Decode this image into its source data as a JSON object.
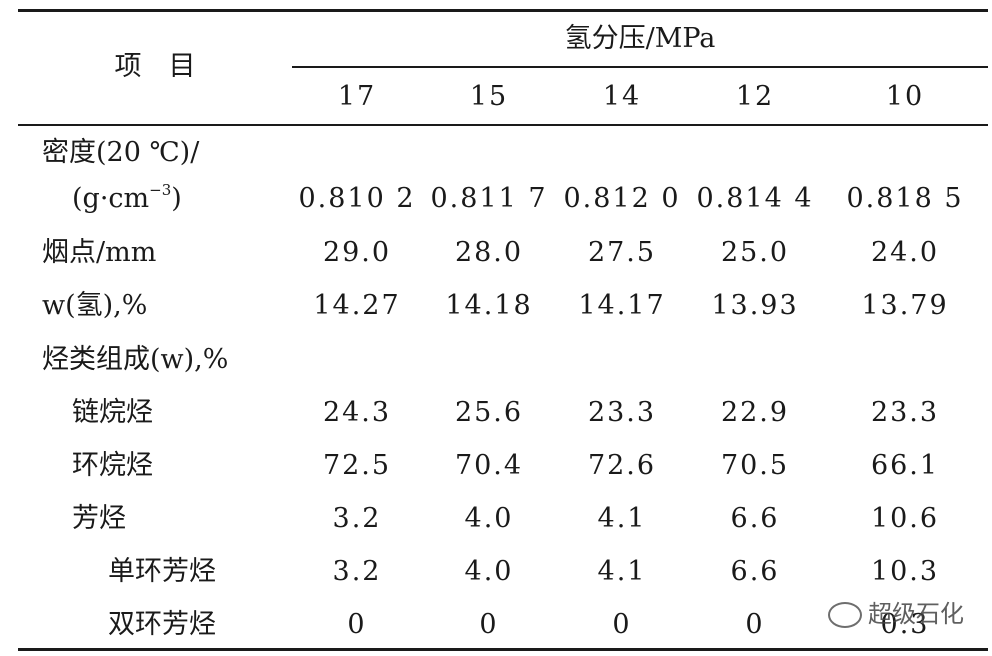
{
  "table": {
    "header": {
      "item_label": "项　目",
      "group_label": "氢分压/MPa",
      "pressures": [
        "17",
        "15",
        "14",
        "12",
        "10"
      ]
    },
    "rows": [
      {
        "label": "密度(20 ℃)/",
        "values": [
          "",
          "",
          "",
          "",
          ""
        ]
      },
      {
        "label": "(g·cm",
        "label_sup": "−3",
        "label_tail": ")",
        "values": [
          "0.810 2",
          "0.811 7",
          "0.812 0",
          "0.814 4",
          "0.818 5"
        ]
      },
      {
        "label": "烟点/mm",
        "values": [
          "29.0",
          "28.0",
          "27.5",
          "25.0",
          "24.0"
        ]
      },
      {
        "label": "w(氢),%",
        "values": [
          "14.27",
          "14.18",
          "14.17",
          "13.93",
          "13.79"
        ]
      },
      {
        "label": "烃类组成(w),%",
        "values": [
          "",
          "",
          "",
          "",
          ""
        ]
      },
      {
        "label": "链烷烃",
        "values": [
          "24.3",
          "25.6",
          "23.3",
          "22.9",
          "23.3"
        ]
      },
      {
        "label": "环烷烃",
        "values": [
          "72.5",
          "70.4",
          "72.6",
          "70.5",
          "66.1"
        ]
      },
      {
        "label": "芳烃",
        "values": [
          "3.2",
          "4.0",
          "4.1",
          "6.6",
          "10.6"
        ]
      },
      {
        "label": "单环芳烃",
        "values": [
          "3.2",
          "4.0",
          "4.1",
          "6.6",
          "10.3"
        ]
      },
      {
        "label": "双环芳烃",
        "values": [
          "0",
          "0",
          "0",
          "0",
          "0.3"
        ]
      }
    ]
  },
  "watermark": {
    "text": "超级石化",
    "icon": "wechat-icon"
  }
}
